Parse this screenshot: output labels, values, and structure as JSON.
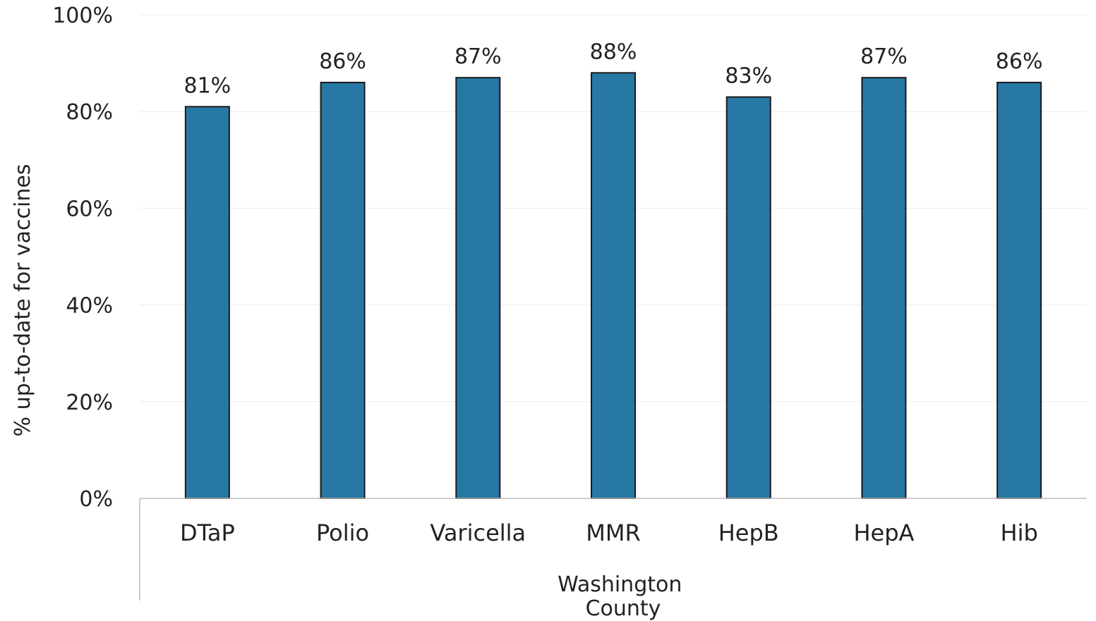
{
  "chart_data": {
    "type": "bar",
    "categories": [
      "DTaP",
      "Polio",
      "Varicella",
      "MMR",
      "HepB",
      "HepA",
      "Hib"
    ],
    "values": [
      81,
      86,
      87,
      88,
      83,
      87,
      86
    ],
    "data_labels": [
      "81%",
      "86%",
      "87%",
      "88%",
      "83%",
      "87%",
      "86%"
    ],
    "xlabel_lines": [
      "Washington",
      "County"
    ],
    "ylabel": "% up-to-date for vaccines",
    "ylim": [
      0,
      100
    ],
    "yticks": [
      0,
      20,
      40,
      60,
      80,
      100
    ],
    "ytick_labels": [
      "0%",
      "20%",
      "40%",
      "60%",
      "80%",
      "100%"
    ],
    "grid": true,
    "bar_color": "#2878a6"
  }
}
